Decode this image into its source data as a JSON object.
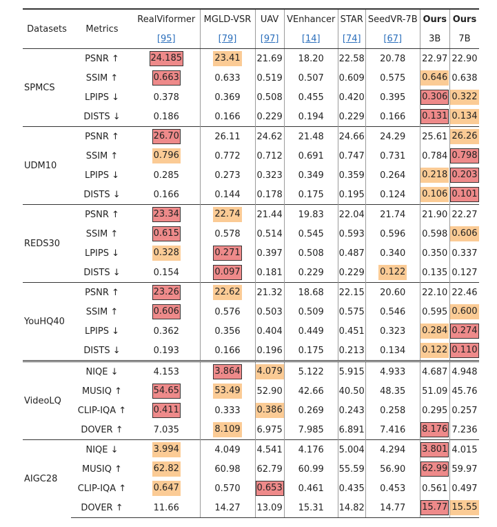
{
  "table": {
    "header": {
      "datasets": "Datasets",
      "metrics": "Metrics",
      "columns": [
        {
          "name": "RealViformer",
          "note": "[95]"
        },
        {
          "name": "MGLD-VSR",
          "note": "[79]"
        },
        {
          "name": "UAV",
          "note": "[97]"
        },
        {
          "name": "VEnhancer",
          "note": "[14]"
        },
        {
          "name": "STAR",
          "note": "[74]"
        },
        {
          "name": "SeedVR-7B",
          "note": "[67]"
        },
        {
          "name": "Ours",
          "note": "3B"
        },
        {
          "name": "Ours",
          "note": "7B"
        }
      ]
    },
    "colors": {
      "best": "#ee8a8a",
      "second": "#fbcb95"
    },
    "groups": [
      {
        "dataset": "SPMCS",
        "rows": [
          {
            "metric": "PSNR ↑",
            "values": [
              "24.185",
              "23.41",
              "21.69",
              "18.20",
              "22.58",
              "20.78",
              "22.97",
              "22.90"
            ],
            "best": 0,
            "second": 1
          },
          {
            "metric": "SSIM ↑",
            "values": [
              "0.663",
              "0.633",
              "0.519",
              "0.507",
              "0.609",
              "0.575",
              "0.646",
              "0.638"
            ],
            "best": 0,
            "second": 6
          },
          {
            "metric": "LPIPS ↓",
            "values": [
              "0.378",
              "0.369",
              "0.508",
              "0.455",
              "0.420",
              "0.395",
              "0.306",
              "0.322"
            ],
            "best": 6,
            "second": 7
          },
          {
            "metric": "DISTS ↓",
            "values": [
              "0.186",
              "0.166",
              "0.229",
              "0.194",
              "0.229",
              "0.166",
              "0.131",
              "0.134"
            ],
            "best": 6,
            "second": 7
          }
        ]
      },
      {
        "dataset": "UDM10",
        "rows": [
          {
            "metric": "PSNR ↑",
            "values": [
              "26.70",
              "26.11",
              "24.62",
              "21.48",
              "24.66",
              "24.29",
              "25.61",
              "26.26"
            ],
            "best": 0,
            "second": 7
          },
          {
            "metric": "SSIM ↑",
            "values": [
              "0.796",
              "0.772",
              "0.712",
              "0.691",
              "0.747",
              "0.731",
              "0.784",
              "0.798"
            ],
            "best": 7,
            "second": 0
          },
          {
            "metric": "LPIPS ↓",
            "values": [
              "0.285",
              "0.273",
              "0.323",
              "0.349",
              "0.359",
              "0.264",
              "0.218",
              "0.203"
            ],
            "best": 7,
            "second": 6
          },
          {
            "metric": "DISTS ↓",
            "values": [
              "0.166",
              "0.144",
              "0.178",
              "0.175",
              "0.195",
              "0.124",
              "0.106",
              "0.101"
            ],
            "best": 7,
            "second": 6
          }
        ]
      },
      {
        "dataset": "REDS30",
        "rows": [
          {
            "metric": "PSNR ↑",
            "values": [
              "23.34",
              "22.74",
              "21.44",
              "19.83",
              "22.04",
              "21.74",
              "21.90",
              "22.27"
            ],
            "best": 0,
            "second": 1
          },
          {
            "metric": "SSIM ↑",
            "values": [
              "0.615",
              "0.578",
              "0.514",
              "0.545",
              "0.593",
              "0.596",
              "0.598",
              "0.606"
            ],
            "best": 0,
            "second": 7
          },
          {
            "metric": "LPIPS ↓",
            "values": [
              "0.328",
              "0.271",
              "0.397",
              "0.508",
              "0.487",
              "0.340",
              "0.350",
              "0.337"
            ],
            "best": 1,
            "second": 0
          },
          {
            "metric": "DISTS ↓",
            "values": [
              "0.154",
              "0.097",
              "0.181",
              "0.229",
              "0.229",
              "0.122",
              "0.135",
              "0.127"
            ],
            "best": 1,
            "second": 5
          }
        ]
      },
      {
        "dataset": "YouHQ40",
        "rows": [
          {
            "metric": "PSNR ↑",
            "values": [
              "23.26",
              "22.62",
              "21.32",
              "18.68",
              "22.15",
              "20.60",
              "22.10",
              "22.46"
            ],
            "best": 0,
            "second": 1
          },
          {
            "metric": "SSIM ↑",
            "values": [
              "0.606",
              "0.576",
              "0.503",
              "0.509",
              "0.575",
              "0.546",
              "0.595",
              "0.600"
            ],
            "best": 0,
            "second": 7
          },
          {
            "metric": "LPIPS ↓",
            "values": [
              "0.362",
              "0.356",
              "0.404",
              "0.449",
              "0.451",
              "0.323",
              "0.284",
              "0.274"
            ],
            "best": 7,
            "second": 6
          },
          {
            "metric": "DISTS ↓",
            "values": [
              "0.193",
              "0.166",
              "0.196",
              "0.175",
              "0.213",
              "0.134",
              "0.122",
              "0.110"
            ],
            "best": 7,
            "second": 6
          }
        ]
      },
      {
        "dataset": "VideoLQ",
        "rows": [
          {
            "metric": "NIQE ↓",
            "values": [
              "4.153",
              "3.864",
              "4.079",
              "5.122",
              "5.915",
              "4.933",
              "4.687",
              "4.948"
            ],
            "best": 1,
            "second": 2
          },
          {
            "metric": "MUSIQ ↑",
            "values": [
              "54.65",
              "53.49",
              "52.90",
              "42.66",
              "40.50",
              "48.35",
              "51.09",
              "45.76"
            ],
            "best": 0,
            "second": 1
          },
          {
            "metric": "CLIP-IQA ↑",
            "values": [
              "0.411",
              "0.333",
              "0.386",
              "0.269",
              "0.243",
              "0.258",
              "0.295",
              "0.257"
            ],
            "best": 0,
            "second": 2
          },
          {
            "metric": "DOVER ↑",
            "values": [
              "7.035",
              "8.109",
              "6.975",
              "7.985",
              "6.891",
              "7.416",
              "8.176",
              "7.236"
            ],
            "best": 6,
            "second": 1
          }
        ]
      },
      {
        "dataset": "AIGC28",
        "rows": [
          {
            "metric": "NIQE ↓",
            "values": [
              "3.994",
              "4.049",
              "4.541",
              "4.176",
              "5.004",
              "4.294",
              "3.801",
              "4.015"
            ],
            "best": 6,
            "second": 0
          },
          {
            "metric": "MUSIQ ↑",
            "values": [
              "62.82",
              "60.98",
              "62.79",
              "60.99",
              "55.59",
              "56.90",
              "62.99",
              "59.97"
            ],
            "best": 6,
            "second": 0
          },
          {
            "metric": "CLIP-IQA ↑",
            "values": [
              "0.647",
              "0.570",
              "0.653",
              "0.461",
              "0.435",
              "0.453",
              "0.561",
              "0.497"
            ],
            "best": 2,
            "second": 0
          },
          {
            "metric": "DOVER ↑",
            "values": [
              "11.66",
              "14.27",
              "13.09",
              "15.31",
              "14.82",
              "14.77",
              "15.77",
              "15.55"
            ],
            "best": 6,
            "second": 7
          }
        ]
      }
    ]
  }
}
